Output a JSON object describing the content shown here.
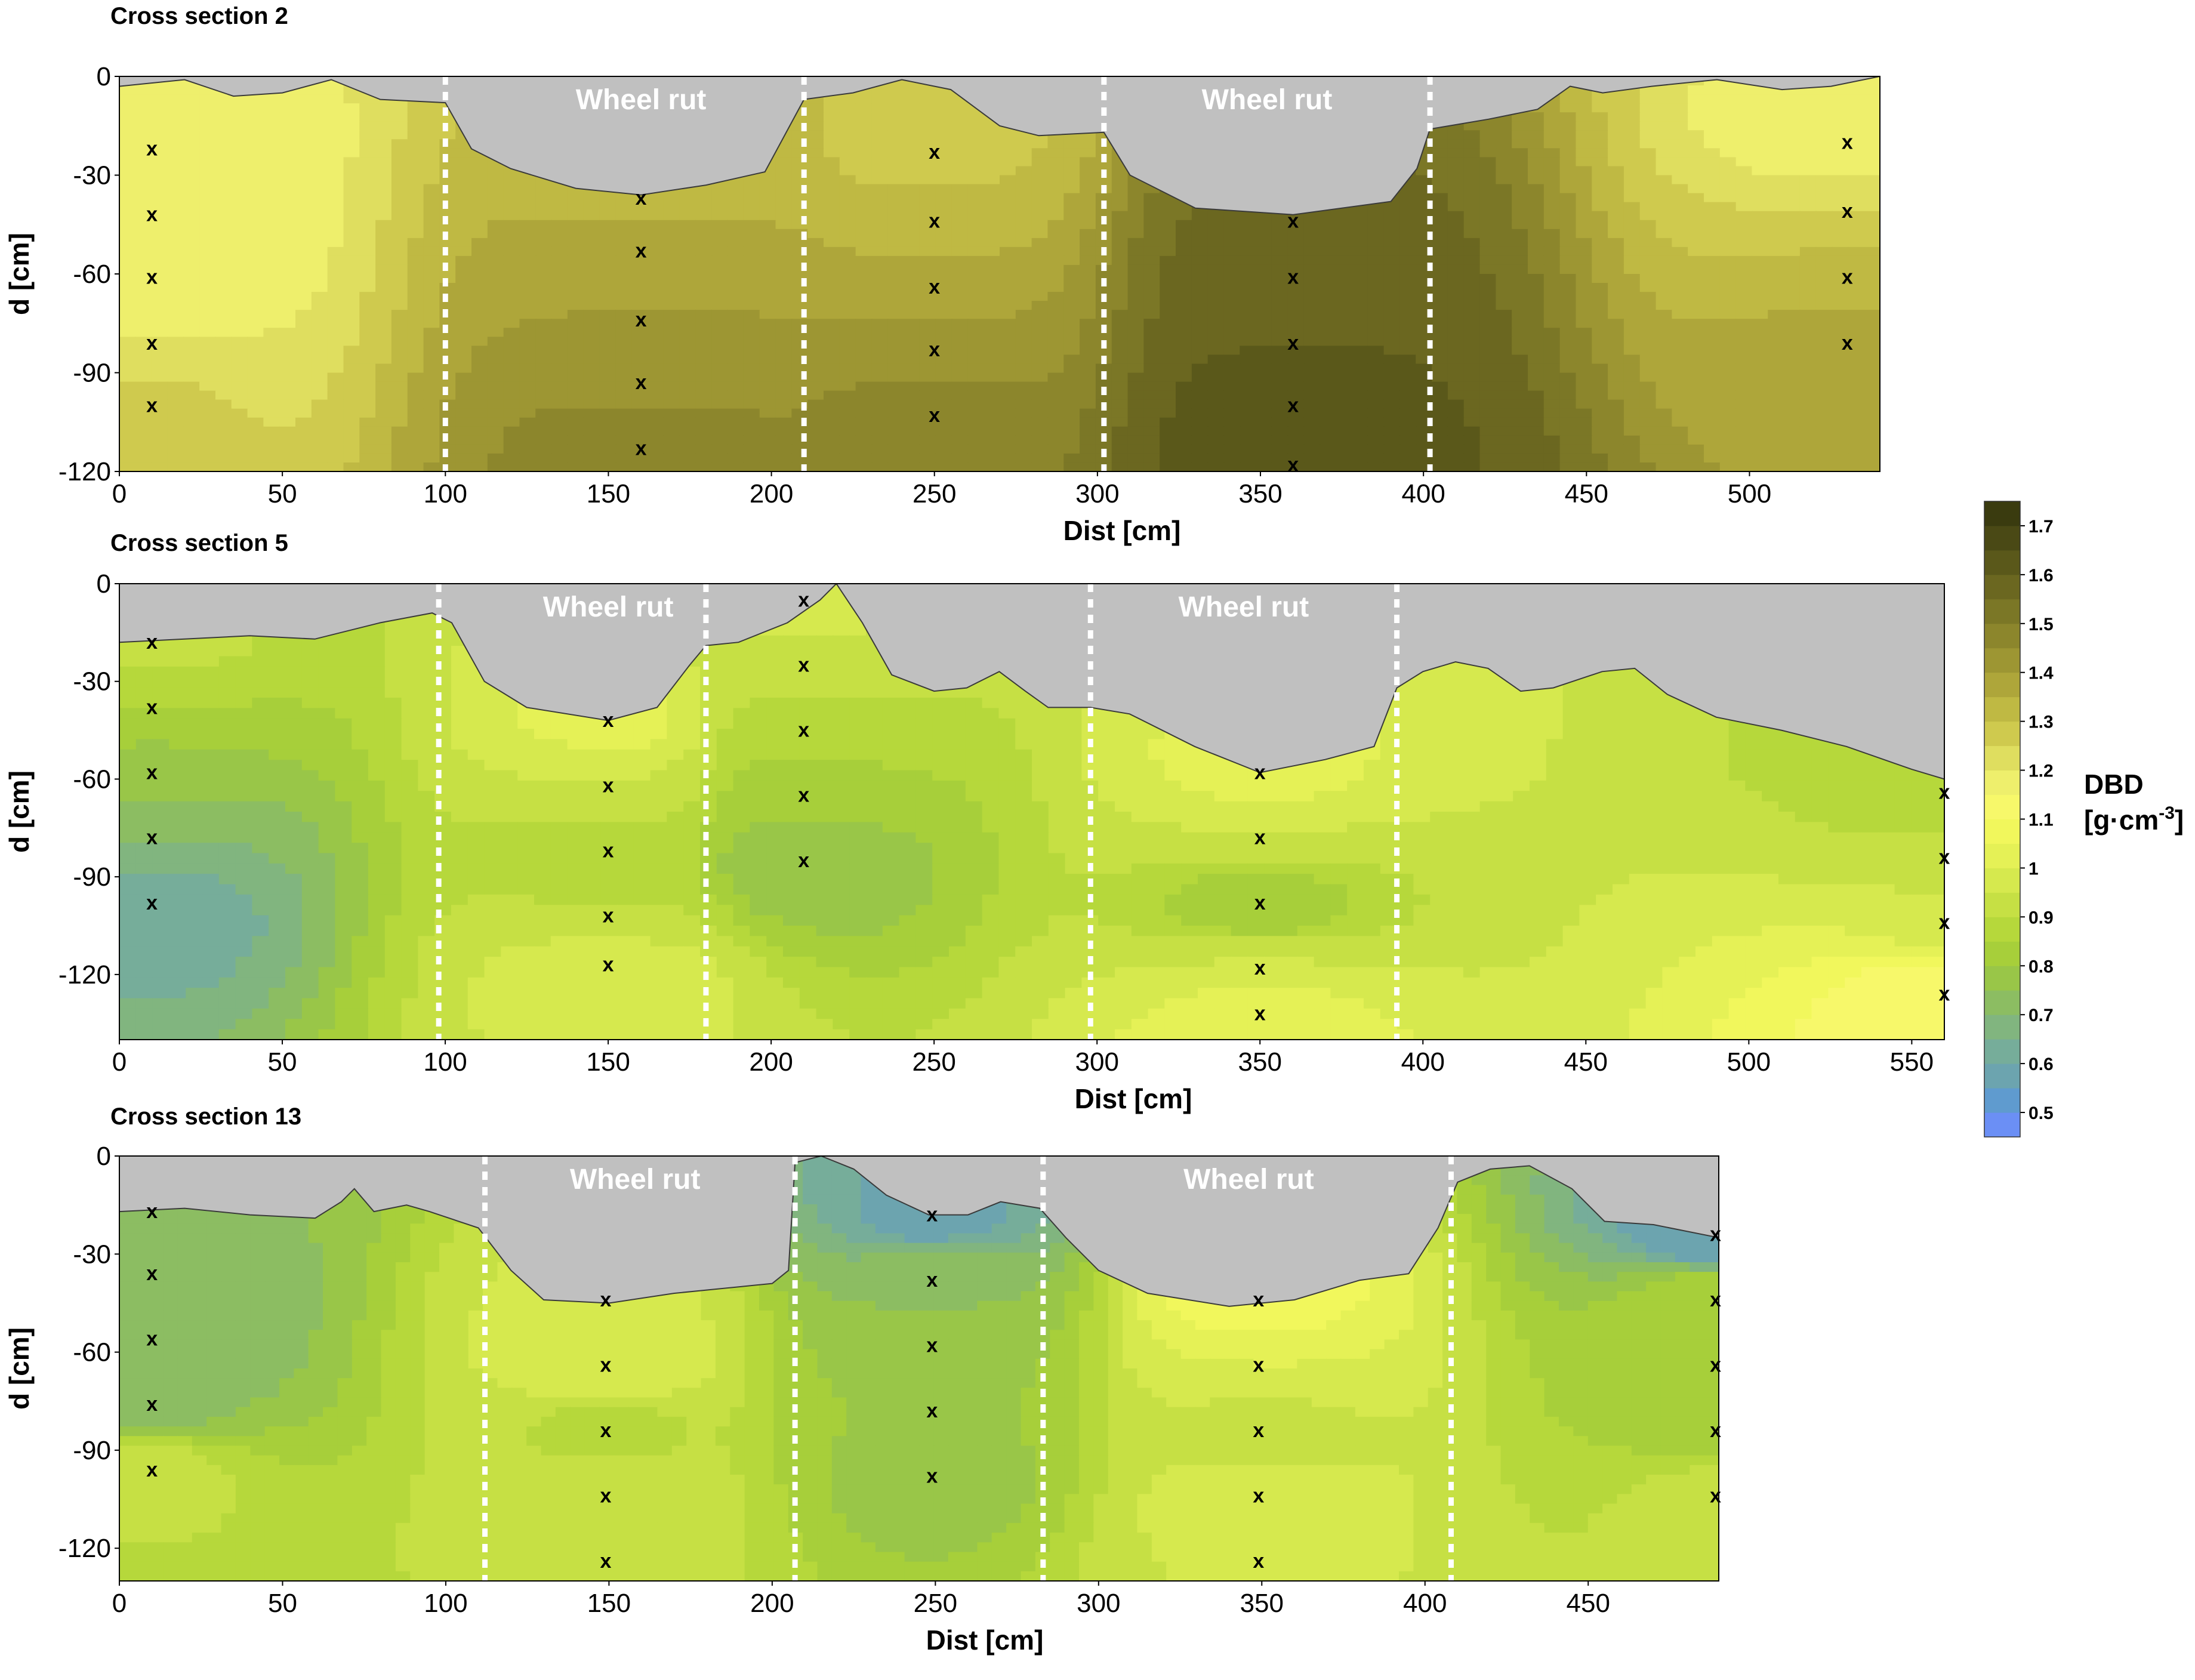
{
  "chart_data": [
    {
      "type": "contour",
      "title": "Cross section 2",
      "xlabel": "Dist [cm]",
      "ylabel": "d [cm]",
      "xlim": [
        0,
        540
      ],
      "ylim": [
        -120,
        0
      ],
      "xticks": [
        0,
        50,
        100,
        150,
        200,
        250,
        300,
        350,
        400,
        450,
        500
      ],
      "yticks": [
        0,
        -30,
        -60,
        -90,
        -120
      ],
      "rut_lines": [
        100,
        210,
        302,
        402
      ],
      "annotations": [
        {
          "text": "Wheel rut",
          "x": 160
        },
        {
          "text": "Wheel rut",
          "x": 352
        }
      ],
      "surface": [
        [
          0,
          -3
        ],
        [
          20,
          -1
        ],
        [
          35,
          -6
        ],
        [
          50,
          -5
        ],
        [
          65,
          -1
        ],
        [
          80,
          -7
        ],
        [
          100,
          -8
        ],
        [
          108,
          -22
        ],
        [
          120,
          -28
        ],
        [
          140,
          -34
        ],
        [
          160,
          -36
        ],
        [
          180,
          -33
        ],
        [
          198,
          -29
        ],
        [
          210,
          -7
        ],
        [
          225,
          -5
        ],
        [
          240,
          -1
        ],
        [
          255,
          -4
        ],
        [
          270,
          -15
        ],
        [
          282,
          -18
        ],
        [
          302,
          -17
        ],
        [
          310,
          -30
        ],
        [
          330,
          -40
        ],
        [
          360,
          -42
        ],
        [
          390,
          -38
        ],
        [
          398,
          -28
        ],
        [
          402,
          -16
        ],
        [
          420,
          -13
        ],
        [
          435,
          -10
        ],
        [
          445,
          -3
        ],
        [
          455,
          -5
        ],
        [
          470,
          -3
        ],
        [
          490,
          -1
        ],
        [
          510,
          -4
        ],
        [
          525,
          -3
        ],
        [
          540,
          0
        ]
      ],
      "points": [
        [
          10,
          -22
        ],
        [
          10,
          -42
        ],
        [
          10,
          -61
        ],
        [
          10,
          -81
        ],
        [
          10,
          -100
        ],
        [
          160,
          -37
        ],
        [
          160,
          -53
        ],
        [
          160,
          -74
        ],
        [
          160,
          -93
        ],
        [
          160,
          -113
        ],
        [
          250,
          -23
        ],
        [
          250,
          -44
        ],
        [
          250,
          -64
        ],
        [
          250,
          -83
        ],
        [
          250,
          -103
        ],
        [
          360,
          -44
        ],
        [
          360,
          -61
        ],
        [
          360,
          -81
        ],
        [
          360,
          -100
        ],
        [
          360,
          -118
        ],
        [
          530,
          -20
        ],
        [
          530,
          -41
        ],
        [
          530,
          -61
        ],
        [
          530,
          -81
        ]
      ],
      "dbd": [
        1.15,
        1.16,
        1.15,
        1.2,
        1.26,
        1.32,
        1.38,
        1.4,
        1.44,
        1.48,
        1.28,
        1.32,
        1.38,
        1.42,
        1.48,
        1.56,
        1.58,
        1.6,
        1.62,
        1.63,
        1.15,
        1.25,
        1.32,
        1.38
      ]
    },
    {
      "type": "contour",
      "title": "Cross section 5",
      "xlabel": "Dist [cm]",
      "ylabel": "d [cm]",
      "xlim": [
        0,
        560
      ],
      "ylim": [
        -140,
        0
      ],
      "xticks": [
        0,
        50,
        100,
        150,
        200,
        250,
        300,
        350,
        400,
        450,
        500,
        550
      ],
      "yticks": [
        0,
        -30,
        -60,
        -90,
        -120
      ],
      "rut_lines": [
        98,
        180,
        298,
        392
      ],
      "annotations": [
        {
          "text": "Wheel rut",
          "x": 150
        },
        {
          "text": "Wheel rut",
          "x": 345
        }
      ],
      "surface": [
        [
          0,
          -18
        ],
        [
          20,
          -17
        ],
        [
          40,
          -16
        ],
        [
          60,
          -17
        ],
        [
          80,
          -12
        ],
        [
          96,
          -9
        ],
        [
          102,
          -12
        ],
        [
          112,
          -30
        ],
        [
          125,
          -38
        ],
        [
          150,
          -42
        ],
        [
          165,
          -38
        ],
        [
          175,
          -25
        ],
        [
          180,
          -19
        ],
        [
          190,
          -18
        ],
        [
          205,
          -12
        ],
        [
          215,
          -5
        ],
        [
          220,
          0
        ],
        [
          228,
          -12
        ],
        [
          237,
          -28
        ],
        [
          250,
          -33
        ],
        [
          260,
          -32
        ],
        [
          270,
          -27
        ],
        [
          278,
          -33
        ],
        [
          285,
          -38
        ],
        [
          298,
          -38
        ],
        [
          310,
          -40
        ],
        [
          330,
          -50
        ],
        [
          350,
          -58
        ],
        [
          370,
          -54
        ],
        [
          385,
          -50
        ],
        [
          392,
          -32
        ],
        [
          400,
          -27
        ],
        [
          410,
          -24
        ],
        [
          420,
          -26
        ],
        [
          430,
          -33
        ],
        [
          440,
          -32
        ],
        [
          455,
          -27
        ],
        [
          465,
          -26
        ],
        [
          475,
          -34
        ],
        [
          490,
          -41
        ],
        [
          510,
          -45
        ],
        [
          530,
          -50
        ],
        [
          550,
          -57
        ],
        [
          560,
          -60
        ]
      ],
      "points": [
        [
          10,
          -18
        ],
        [
          10,
          -38
        ],
        [
          10,
          -58
        ],
        [
          10,
          -78
        ],
        [
          10,
          -98
        ],
        [
          150,
          -42
        ],
        [
          150,
          -62
        ],
        [
          150,
          -82
        ],
        [
          150,
          -102
        ],
        [
          150,
          -117
        ],
        [
          210,
          -5
        ],
        [
          210,
          -25
        ],
        [
          210,
          -45
        ],
        [
          210,
          -65
        ],
        [
          210,
          -85
        ],
        [
          350,
          -58
        ],
        [
          350,
          -78
        ],
        [
          350,
          -98
        ],
        [
          350,
          -118
        ],
        [
          350,
          -132
        ],
        [
          560,
          -64
        ],
        [
          560,
          -84
        ],
        [
          560,
          -104
        ],
        [
          560,
          -126
        ]
      ],
      "dbd": [
        0.92,
        0.85,
        0.78,
        0.7,
        0.62,
        1.02,
        0.95,
        0.85,
        0.9,
        1.0,
        0.98,
        0.92,
        0.88,
        0.82,
        0.76,
        1.02,
        0.95,
        0.8,
        0.95,
        1.05,
        0.85,
        0.92,
        0.98,
        1.15
      ]
    },
    {
      "type": "contour",
      "title": "Cross section 13",
      "xlabel": "Dist [cm]",
      "ylabel": "d [cm]",
      "xlim": [
        0,
        490
      ],
      "ylim": [
        -130,
        0
      ],
      "xticks": [
        0,
        50,
        100,
        150,
        200,
        250,
        300,
        350,
        400,
        450
      ],
      "yticks": [
        0,
        -30,
        -60,
        -90,
        -120
      ],
      "rut_lines": [
        112,
        207,
        283,
        408
      ],
      "annotations": [
        {
          "text": "Wheel rut",
          "x": 158
        },
        {
          "text": "Wheel rut",
          "x": 346
        }
      ],
      "surface": [
        [
          0,
          -17
        ],
        [
          20,
          -16
        ],
        [
          40,
          -18
        ],
        [
          60,
          -19
        ],
        [
          68,
          -14
        ],
        [
          72,
          -10
        ],
        [
          78,
          -17
        ],
        [
          88,
          -15
        ],
        [
          95,
          -17
        ],
        [
          110,
          -22
        ],
        [
          120,
          -35
        ],
        [
          130,
          -44
        ],
        [
          150,
          -45
        ],
        [
          170,
          -42
        ],
        [
          190,
          -40
        ],
        [
          200,
          -39
        ],
        [
          205,
          -35
        ],
        [
          207,
          -2
        ],
        [
          215,
          0
        ],
        [
          225,
          -4
        ],
        [
          235,
          -12
        ],
        [
          248,
          -18
        ],
        [
          260,
          -18
        ],
        [
          270,
          -14
        ],
        [
          282,
          -16
        ],
        [
          290,
          -25
        ],
        [
          300,
          -35
        ],
        [
          315,
          -42
        ],
        [
          340,
          -46
        ],
        [
          360,
          -44
        ],
        [
          380,
          -38
        ],
        [
          395,
          -36
        ],
        [
          404,
          -22
        ],
        [
          410,
          -8
        ],
        [
          420,
          -4
        ],
        [
          432,
          -3
        ],
        [
          445,
          -10
        ],
        [
          455,
          -20
        ],
        [
          470,
          -21
        ],
        [
          490,
          -25
        ]
      ],
      "points": [
        [
          10,
          -17
        ],
        [
          10,
          -36
        ],
        [
          10,
          -56
        ],
        [
          10,
          -76
        ],
        [
          10,
          -96
        ],
        [
          149,
          -44
        ],
        [
          149,
          -64
        ],
        [
          149,
          -84
        ],
        [
          149,
          -104
        ],
        [
          149,
          -124
        ],
        [
          249,
          -18
        ],
        [
          249,
          -38
        ],
        [
          249,
          -58
        ],
        [
          249,
          -78
        ],
        [
          249,
          -98
        ],
        [
          349,
          -44
        ],
        [
          349,
          -64
        ],
        [
          349,
          -84
        ],
        [
          349,
          -104
        ],
        [
          349,
          -124
        ],
        [
          489,
          -24
        ],
        [
          489,
          -44
        ],
        [
          489,
          -64
        ],
        [
          489,
          -84
        ],
        [
          489,
          -104
        ]
      ],
      "dbd": [
        0.75,
        0.72,
        0.7,
        0.72,
        0.92,
        0.96,
        1.0,
        0.88,
        0.95,
        0.9,
        0.58,
        0.74,
        0.78,
        0.8,
        0.78,
        1.08,
        1.0,
        0.92,
        0.98,
        0.95,
        0.55,
        0.85,
        0.82,
        0.82,
        0.92
      ]
    }
  ],
  "colorbar": {
    "title_line1": "DBD",
    "title_line2": "[g·cm",
    "title_sup": "-3",
    "title_close": "]",
    "tick_labels": [
      "1.7",
      "1.6",
      "1.5",
      "1.4",
      "1.3",
      "1.2",
      "1.1",
      "1",
      "0.9",
      "0.8",
      "0.7",
      "0.6",
      "0.5"
    ],
    "levels": [
      0.45,
      0.5,
      0.55,
      0.6,
      0.65,
      0.7,
      0.75,
      0.8,
      0.85,
      0.9,
      0.95,
      1.0,
      1.05,
      1.1,
      1.15,
      1.2,
      1.25,
      1.3,
      1.35,
      1.4,
      1.45,
      1.5,
      1.55,
      1.6,
      1.65,
      1.7,
      1.75
    ],
    "colors": [
      "#6b8ff5",
      "#5f9bcf",
      "#6ca4af",
      "#76ad9a",
      "#81b57f",
      "#8cbd62",
      "#99c648",
      "#a7cf3a",
      "#b6d83b",
      "#c6e044",
      "#d6e94e",
      "#e5f156",
      "#f1f75c",
      "#f7f86a",
      "#eeef6c",
      "#dfde5f",
      "#cfca4e",
      "#bfb943",
      "#aea63a",
      "#9d9633",
      "#8c862c",
      "#7b7726",
      "#6b6720",
      "#5a581a",
      "#4a4915",
      "#3a3b0f"
    ]
  },
  "markers": {
    "symbol": "x"
  },
  "rut_color": "#c0c0c0"
}
